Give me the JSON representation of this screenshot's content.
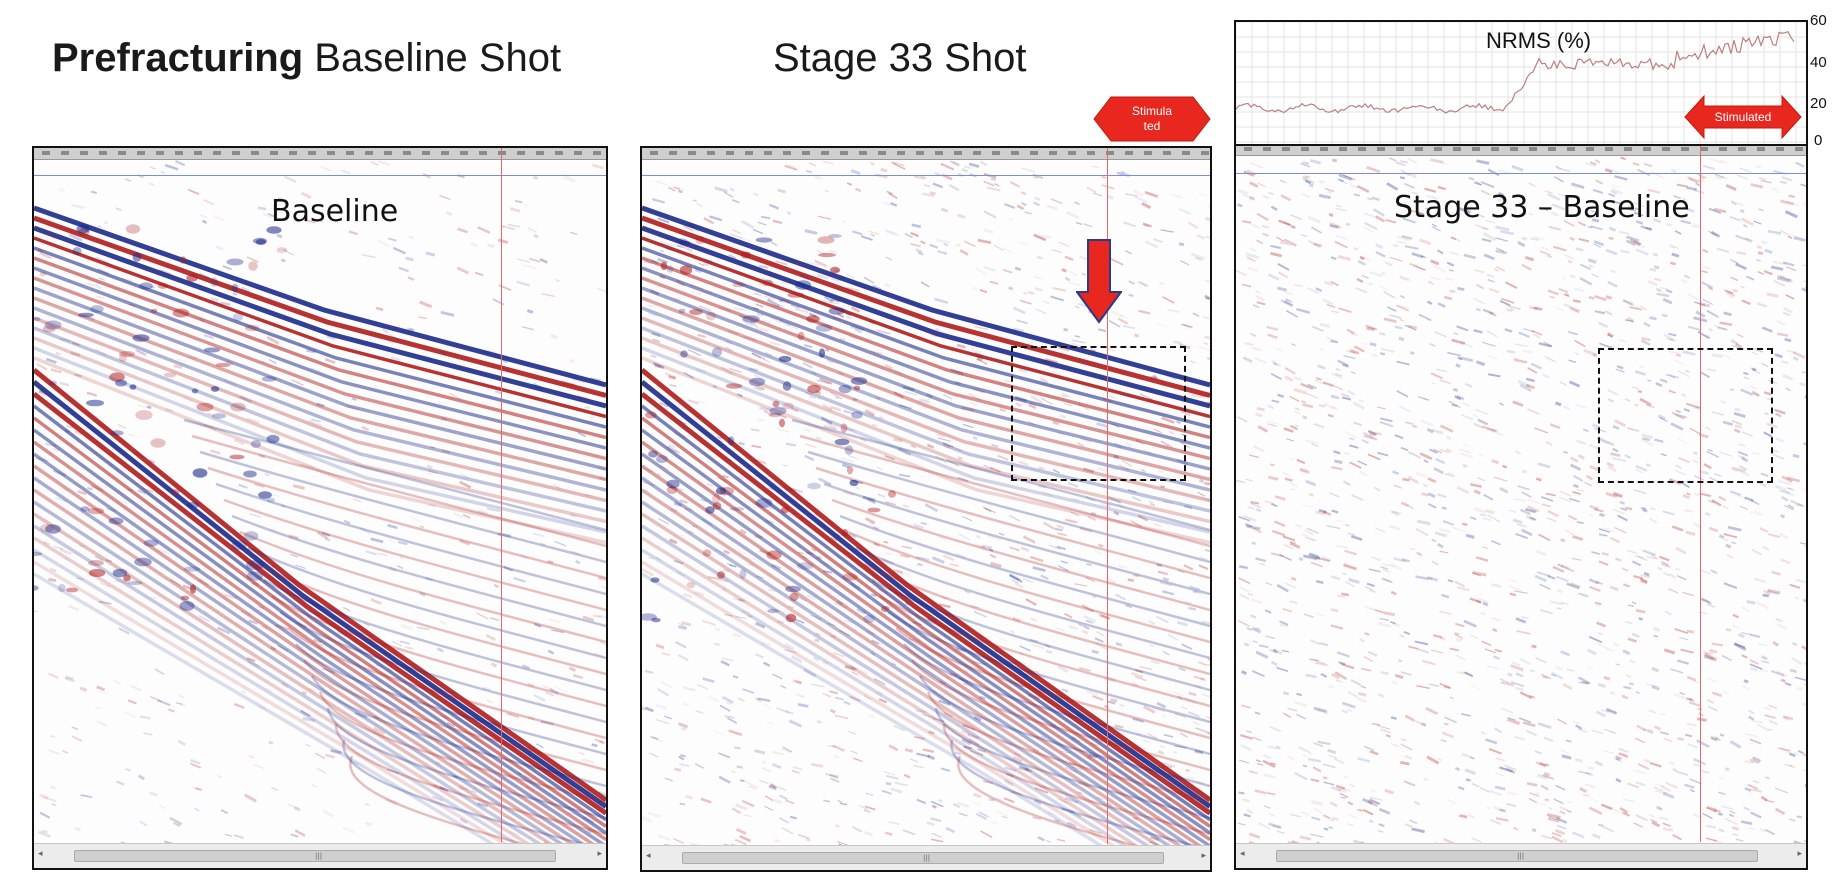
{
  "titles": {
    "baseline_bold": "Prefracturing",
    "baseline_rest": "Baseline Shot",
    "stage": "Stage 33 Shot"
  },
  "panels": {
    "baseline_label": "Baseline",
    "difference_label": "Stage 33 – Baseline"
  },
  "nrms": {
    "title": "NRMS (%)",
    "y_ticks": [
      "60",
      "40",
      "20",
      "0"
    ]
  },
  "markers": {
    "stimulated_top": "Stimula ted",
    "stimulated_bottom": "Stimulated"
  },
  "colors": {
    "positive": "#b01c1c",
    "negative": "#1c2a8c",
    "arrow": "#e8281e"
  },
  "icons": {
    "scroll_left": "◂",
    "scroll_right": "▸",
    "scroll_grip": "|||"
  }
}
